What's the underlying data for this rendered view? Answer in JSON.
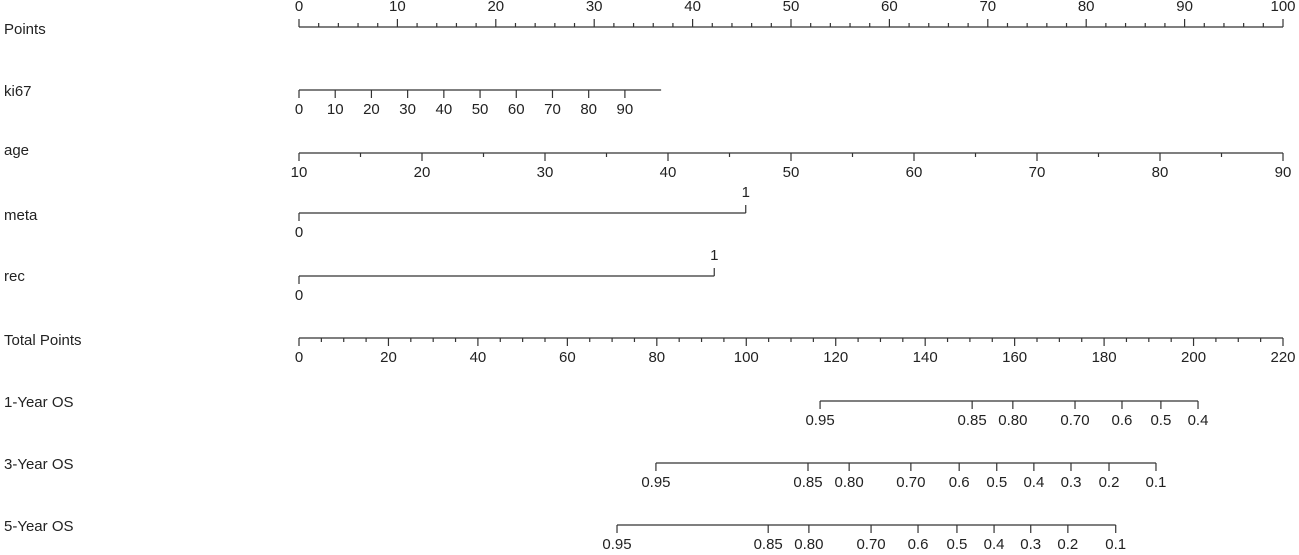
{
  "chart_data": {
    "type": "nomogram",
    "rows": [
      {
        "name": "Points",
        "lim": [
          0,
          100
        ],
        "points": [
          0,
          100
        ],
        "label_side": "above",
        "ticks": [
          0,
          10,
          20,
          30,
          40,
          50,
          60,
          70,
          80,
          90,
          100
        ],
        "minorticks": [
          2,
          4,
          6,
          8,
          12,
          14,
          16,
          18,
          22,
          24,
          26,
          28,
          32,
          34,
          36,
          38,
          42,
          44,
          46,
          48,
          52,
          54,
          56,
          58,
          62,
          64,
          66,
          68,
          72,
          74,
          76,
          78,
          82,
          84,
          86,
          88,
          92,
          94,
          96,
          98
        ]
      },
      {
        "name": "ki67",
        "lim": [
          0,
          100
        ],
        "points": [
          0,
          36.8
        ],
        "label_side": "below",
        "ticks": [
          0,
          10,
          20,
          30,
          40,
          50,
          60,
          70,
          80,
          90
        ]
      },
      {
        "name": "age",
        "lim": [
          10,
          90
        ],
        "points": [
          0,
          100
        ],
        "label_side": "below",
        "ticks": [
          10,
          20,
          30,
          40,
          50,
          60,
          70,
          80,
          90
        ],
        "minorticks": [
          15,
          25,
          35,
          45,
          55,
          65,
          75,
          85
        ]
      },
      {
        "name": "meta",
        "lim": [
          0,
          1
        ],
        "points": [
          0,
          45.4
        ],
        "label_side": "split",
        "ticks": [
          0,
          1
        ]
      },
      {
        "name": "rec",
        "lim": [
          0,
          1
        ],
        "points": [
          0,
          42.2
        ],
        "label_side": "split",
        "ticks": [
          0,
          1
        ]
      },
      {
        "name": "Total Points",
        "lim": [
          0,
          220
        ],
        "points": [
          0,
          100
        ],
        "label_side": "below",
        "ticks": [
          0,
          20,
          40,
          60,
          80,
          100,
          120,
          140,
          160,
          180,
          200,
          220
        ],
        "minorticks": [
          5,
          10,
          15,
          25,
          30,
          35,
          45,
          50,
          55,
          65,
          70,
          75,
          85,
          90,
          95,
          105,
          110,
          115,
          125,
          130,
          135,
          145,
          150,
          155,
          165,
          170,
          175,
          185,
          190,
          195,
          205,
          210,
          215
        ]
      },
      {
        "name": "1-Year OS",
        "axis": "total",
        "label_side": "below",
        "ticks": [
          {
            "value": 116.5,
            "label": "0.95"
          },
          {
            "value": 150.5,
            "label": "0.85"
          },
          {
            "value": 159.6,
            "label": "0.80"
          },
          {
            "value": 173.5,
            "label": "0.70"
          },
          {
            "value": 184,
            "label": "0.6"
          },
          {
            "value": 192.7,
            "label": "0.5"
          },
          {
            "value": 201,
            "label": "0.4"
          }
        ]
      },
      {
        "name": "3-Year OS",
        "axis": "total",
        "label_side": "below",
        "ticks": [
          {
            "value": 79.8,
            "label": "0.95"
          },
          {
            "value": 113.8,
            "label": "0.85"
          },
          {
            "value": 123,
            "label": "0.80"
          },
          {
            "value": 136.8,
            "label": "0.70"
          },
          {
            "value": 147.6,
            "label": "0.6"
          },
          {
            "value": 156,
            "label": "0.5"
          },
          {
            "value": 164.3,
            "label": "0.4"
          },
          {
            "value": 172.6,
            "label": "0.3"
          },
          {
            "value": 181.1,
            "label": "0.2"
          },
          {
            "value": 191.6,
            "label": "0.1"
          }
        ]
      },
      {
        "name": "5-Year OS",
        "axis": "total",
        "label_side": "below",
        "ticks": [
          {
            "value": 71.1,
            "label": "0.95"
          },
          {
            "value": 104.9,
            "label": "0.85"
          },
          {
            "value": 114,
            "label": "0.80"
          },
          {
            "value": 127.9,
            "label": "0.70"
          },
          {
            "value": 138.4,
            "label": "0.6"
          },
          {
            "value": 147.1,
            "label": "0.5"
          },
          {
            "value": 155.4,
            "label": "0.4"
          },
          {
            "value": 163.6,
            "label": "0.3"
          },
          {
            "value": 171.9,
            "label": "0.2"
          },
          {
            "value": 182.6,
            "label": "0.1"
          }
        ]
      }
    ]
  }
}
